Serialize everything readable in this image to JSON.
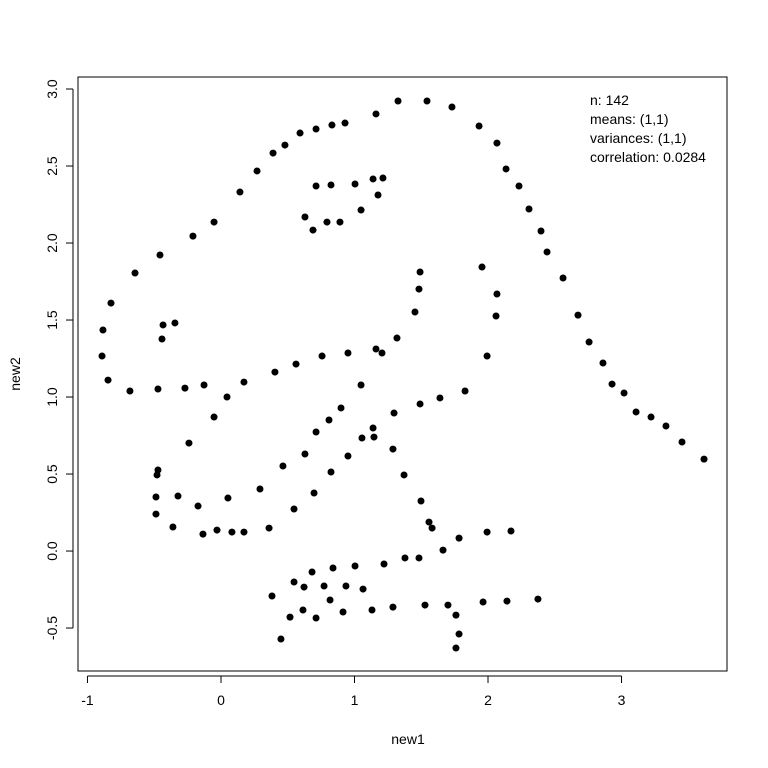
{
  "chart_data": {
    "type": "scatter",
    "xlabel": "new1",
    "ylabel": "new2",
    "annotations": [
      "n: 142",
      "means: (1,1)",
      "variances: (1,1)",
      "correlation: 0.0284"
    ],
    "color": "#000000",
    "xlim": [
      -1.071,
      3.79
    ],
    "ylim": [
      -0.779,
      3.078
    ],
    "xticks": [
      -1,
      0,
      1,
      2,
      3
    ],
    "yticks": [
      -0.5,
      {
        "value": 0,
        "label": "0.0"
      },
      0.5,
      {
        "value": 1,
        "label": "1.0"
      },
      1.5,
      {
        "value": 2,
        "label": "2.0"
      },
      2.5,
      {
        "value": 3,
        "label": "3.0"
      }
    ],
    "x": [
      1.326,
      1.543,
      1.73,
      1.161,
      1.933,
      0.929,
      0.831,
      0.712,
      0.592,
      0.479,
      0.39,
      2.067,
      0.27,
      2.135,
      0.142,
      2.232,
      -0.052,
      2.307,
      -0.21,
      2.397,
      2.442,
      -0.457,
      -0.644,
      2.562,
      -0.824,
      -0.884,
      -0.891,
      -0.846,
      -0.682,
      -0.472,
      -0.27,
      -0.434,
      -0.345,
      -0.442,
      -0.127,
      0.172,
      0.045,
      -0.052,
      -0.24,
      0.404,
      0.562,
      0.757,
      0.951,
      1.161,
      1.206,
      1.318,
      1.453,
      1.483,
      1.491,
      1.955,
      2.067,
      2.06,
      1.993,
      2.674,
      2.757,
      2.861,
      2.929,
      3.019,
      3.109,
      3.221,
      3.333,
      3.453,
      3.618,
      1.828,
      1.64,
      1.491,
      1.049,
      1.296,
      0.899,
      0.809,
      0.712,
      1.056,
      1.139,
      1.146,
      0.951,
      0.629,
      0.464,
      0.824,
      1.288,
      1.371,
      0.697,
      0.292,
      -0.472,
      -0.479,
      -0.322,
      -0.487,
      -0.487,
      -0.36,
      -0.172,
      0.052,
      -0.135,
      -0.03,
      0.082,
      0.172,
      0.36,
      0.547,
      1.498,
      1.558,
      1.581,
      1.783,
      1.993,
      2.172,
      1.663,
      1.378,
      1.483,
      1.221,
      1.004,
      0.839,
      0.682,
      0.547,
      0.622,
      0.772,
      0.936,
      1.064,
      0.382,
      0.817,
      0.614,
      0.517,
      0.712,
      0.914,
      1.131,
      1.288,
      1.528,
      1.7,
      1.963,
      2.142,
      2.374,
      1.76,
      1.783,
      1.76,
      0.449,
      0.824,
      0.712,
      0.629,
      0.689,
      0.794,
      0.891,
      1.004,
      1.049,
      1.139,
      1.213,
      1.176
    ],
    "y": [
      2.922,
      2.922,
      2.883,
      2.838,
      2.76,
      2.779,
      2.766,
      2.74,
      2.714,
      2.636,
      2.584,
      2.649,
      2.468,
      2.481,
      2.331,
      2.37,
      2.136,
      2.221,
      2.045,
      2.078,
      1.942,
      1.922,
      1.805,
      1.773,
      1.61,
      1.435,
      1.266,
      1.11,
      1.039,
      1.052,
      1.058,
      1.468,
      1.481,
      1.377,
      1.078,
      1.097,
      1.0,
      0.87,
      0.701,
      1.162,
      1.214,
      1.266,
      1.286,
      1.312,
      1.286,
      1.383,
      1.552,
      1.701,
      1.812,
      1.844,
      1.669,
      1.526,
      1.266,
      1.532,
      1.357,
      1.221,
      1.084,
      1.026,
      0.903,
      0.87,
      0.812,
      0.708,
      0.597,
      1.039,
      0.994,
      0.955,
      1.078,
      0.896,
      0.929,
      0.851,
      0.773,
      0.734,
      0.799,
      0.74,
      0.617,
      0.63,
      0.552,
      0.513,
      0.662,
      0.494,
      0.377,
      0.403,
      0.526,
      0.494,
      0.357,
      0.351,
      0.24,
      0.156,
      0.292,
      0.344,
      0.11,
      0.136,
      0.123,
      0.123,
      0.149,
      0.273,
      0.325,
      0.188,
      0.149,
      0.084,
      0.123,
      0.13,
      0.006,
      -0.045,
      -0.045,
      -0.084,
      -0.097,
      -0.11,
      -0.136,
      -0.201,
      -0.234,
      -0.227,
      -0.227,
      -0.247,
      -0.292,
      -0.318,
      -0.383,
      -0.429,
      -0.435,
      -0.396,
      -0.383,
      -0.364,
      -0.351,
      -0.351,
      -0.331,
      -0.325,
      -0.312,
      -0.416,
      -0.539,
      -0.63,
      -0.571,
      2.377,
      2.37,
      2.169,
      2.084,
      2.136,
      2.136,
      2.383,
      2.214,
      2.416,
      2.422,
      2.312
    ]
  }
}
